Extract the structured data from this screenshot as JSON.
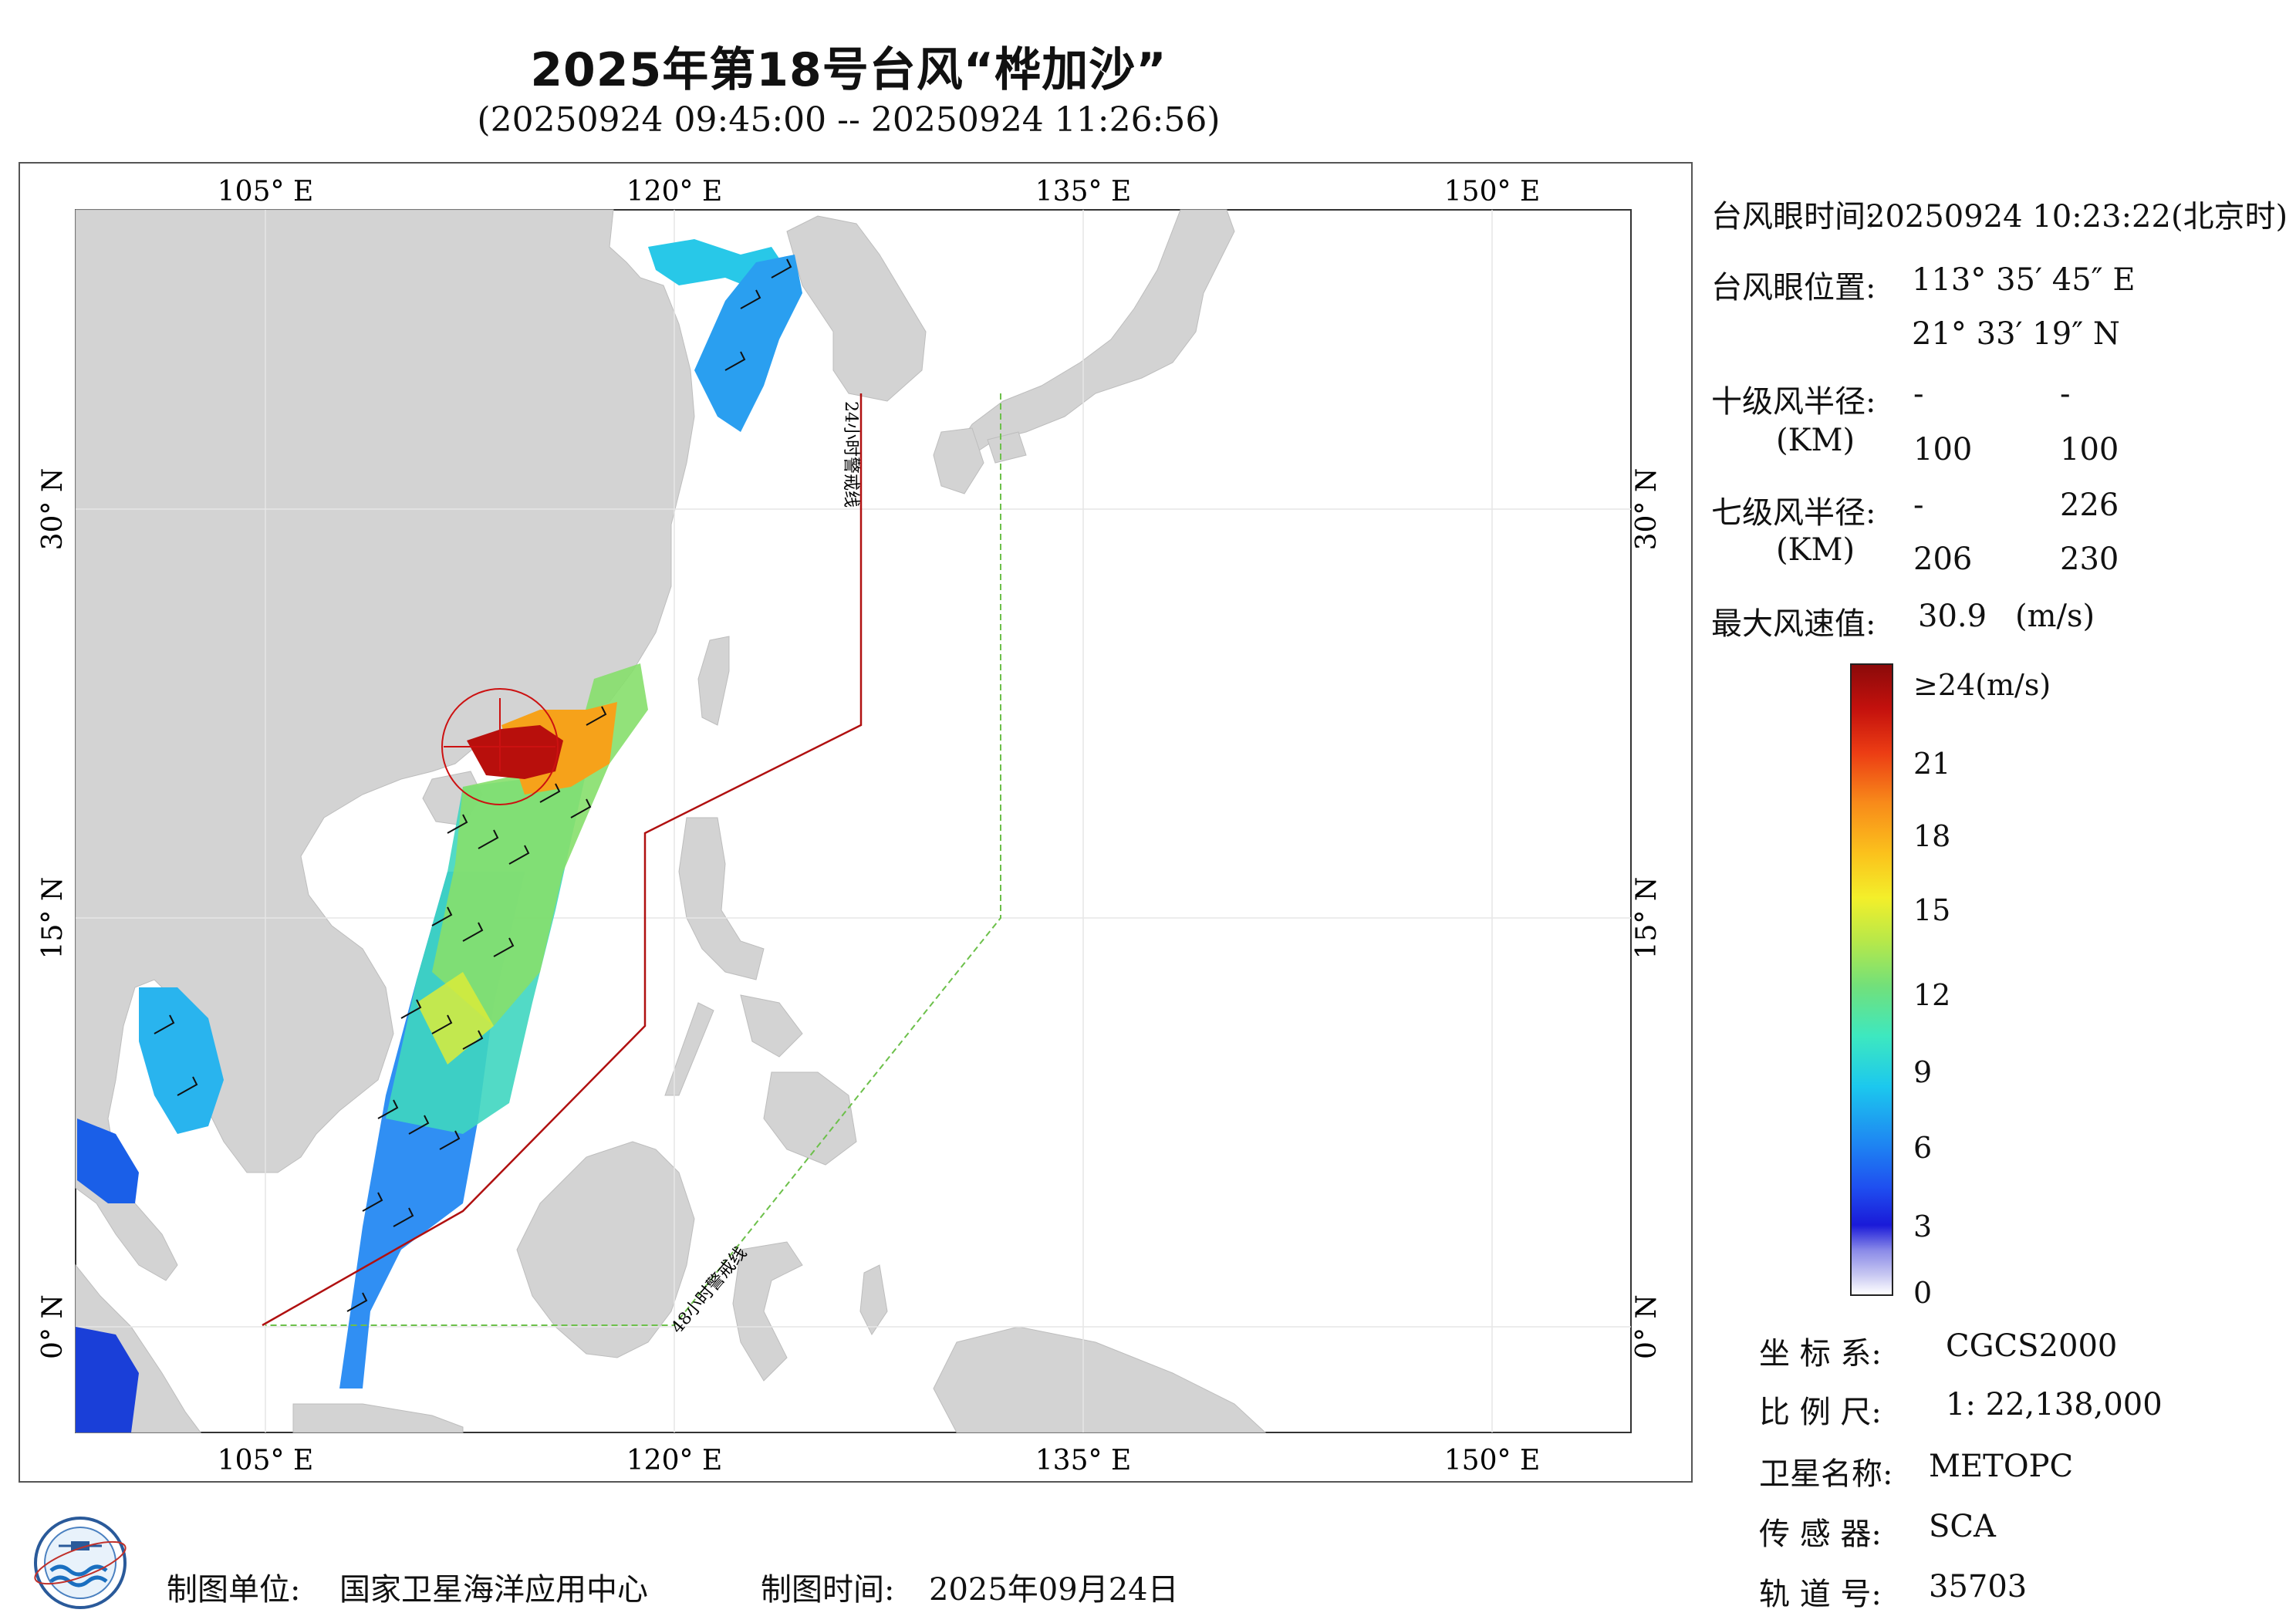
{
  "header": {
    "title": "2025年第18号台风“桦加沙”",
    "subtitle": "(20250924 09:45:00 -- 20250924 11:26:56)"
  },
  "map": {
    "lon_ticks": [
      "105° E",
      "120° E",
      "135° E",
      "150° E"
    ],
    "lat_ticks": [
      "30° N",
      "15° N",
      "0° N"
    ],
    "warning_line_24h": "24小时警戒线",
    "warning_line_48h": "48小时警戒线",
    "colors": {
      "land": "#d3d3d3",
      "sea": "#ffffff",
      "warning_24h": "#b01010",
      "warning_48h": "#6cc04a"
    }
  },
  "typhoon_info": {
    "eye_time_label": "台风眼时间:",
    "eye_time_value": "20250924 10:23:22(北京时)",
    "eye_position_label": "台风眼位置:",
    "eye_lon": "113° 35′ 45″ E",
    "eye_lat": "21° 33′ 19″ N",
    "r10_label": "十级风半径:",
    "r10_unit": "(KM)",
    "r10_values": [
      "-",
      "-",
      "100",
      "100"
    ],
    "r7_label": "七级风半径:",
    "r7_unit": "(KM)",
    "r7_values": [
      "-",
      "226",
      "206",
      "230"
    ],
    "max_wind_label": "最大风速值:",
    "max_wind_value": "30.9",
    "max_wind_unit": "(m/s)"
  },
  "colorbar": {
    "labels": [
      "≥24(m/s)",
      "21",
      "18",
      "15",
      "12",
      "9",
      "6",
      "3",
      "0"
    ]
  },
  "meta": {
    "crs_label": "坐 标 系:",
    "crs_value": "CGCS2000",
    "scale_label": "比 例 尺:",
    "scale_value": "1: 22,138,000",
    "satellite_label": "卫星名称:",
    "satellite_value": "METOPC",
    "sensor_label": "传 感 器:",
    "sensor_value": "SCA",
    "orbit_label": "轨 道 号:",
    "orbit_value": "35703"
  },
  "footer": {
    "producer_label": "制图单位:",
    "producer_value": "国家卫星海洋应用中心",
    "date_label": "制图时间:",
    "date_value": "2025年09月24日"
  }
}
